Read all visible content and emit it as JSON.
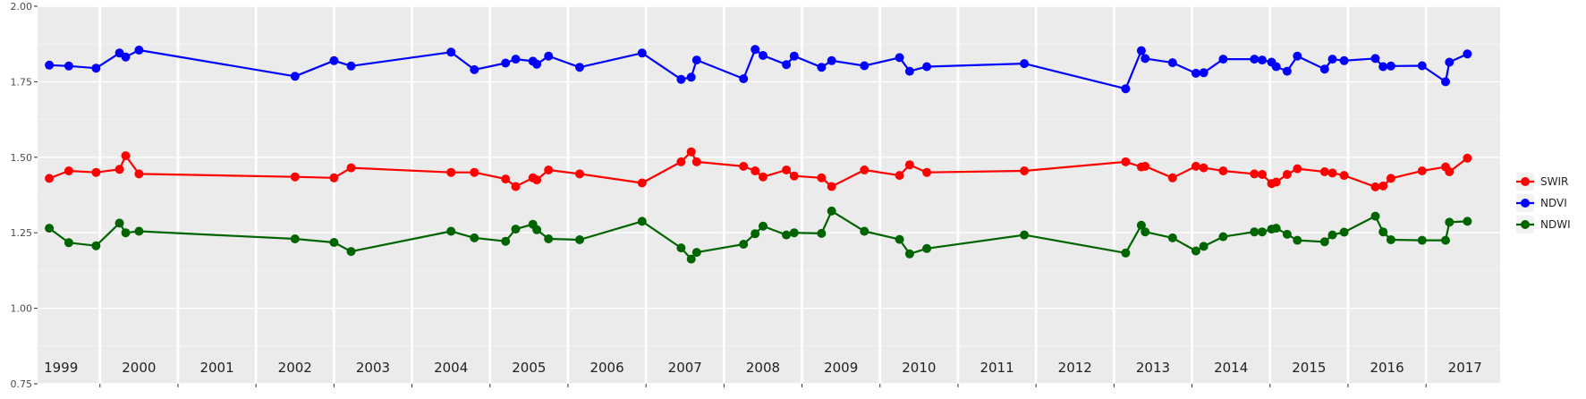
{
  "chart_data": {
    "type": "line",
    "title": "",
    "xlabel": "",
    "ylabel": "",
    "ylim": [
      0.75,
      2.0
    ],
    "xlim": [
      1998.7,
      2017.45
    ],
    "yticks": [
      "0.75",
      "1.00",
      "1.25",
      "1.50",
      "1.75",
      "2.00"
    ],
    "year_labels": [
      "1999",
      "2000",
      "2001",
      "2002",
      "2003",
      "2004",
      "2005",
      "2006",
      "2007",
      "2008",
      "2009",
      "2010",
      "2011",
      "2012",
      "2013",
      "2014",
      "2015",
      "2016",
      "2017"
    ],
    "grid": true,
    "legend_position": "right",
    "series": [
      {
        "name": "SWIR",
        "color": "#ff0000",
        "points": [
          [
            1998.85,
            1.43
          ],
          [
            1999.1,
            1.455
          ],
          [
            1999.45,
            1.45
          ],
          [
            1999.75,
            1.46
          ],
          [
            1999.83,
            1.505
          ],
          [
            2000.0,
            1.445
          ],
          [
            2002.0,
            1.435
          ],
          [
            2002.5,
            1.432
          ],
          [
            2002.72,
            1.465
          ],
          [
            2004.0,
            1.45
          ],
          [
            2004.3,
            1.45
          ],
          [
            2004.7,
            1.428
          ],
          [
            2004.83,
            1.403
          ],
          [
            2005.05,
            1.432
          ],
          [
            2005.1,
            1.425
          ],
          [
            2005.25,
            1.458
          ],
          [
            2005.65,
            1.445
          ],
          [
            2006.45,
            1.415
          ],
          [
            2006.95,
            1.485
          ],
          [
            2007.08,
            1.518
          ],
          [
            2007.15,
            1.485
          ],
          [
            2007.75,
            1.47
          ],
          [
            2007.9,
            1.455
          ],
          [
            2008.0,
            1.435
          ],
          [
            2008.3,
            1.458
          ],
          [
            2008.4,
            1.438
          ],
          [
            2008.75,
            1.432
          ],
          [
            2008.88,
            1.403
          ],
          [
            2009.3,
            1.458
          ],
          [
            2009.75,
            1.44
          ],
          [
            2009.88,
            1.475
          ],
          [
            2010.1,
            1.45
          ],
          [
            2011.35,
            1.455
          ],
          [
            2012.65,
            1.485
          ],
          [
            2012.85,
            1.468
          ],
          [
            2012.9,
            1.47
          ],
          [
            2013.25,
            1.432
          ],
          [
            2013.55,
            1.47
          ],
          [
            2013.65,
            1.465
          ],
          [
            2013.9,
            1.455
          ],
          [
            2014.3,
            1.445
          ],
          [
            2014.4,
            1.443
          ],
          [
            2014.52,
            1.413
          ],
          [
            2014.58,
            1.418
          ],
          [
            2014.72,
            1.443
          ],
          [
            2014.85,
            1.462
          ],
          [
            2015.2,
            1.452
          ],
          [
            2015.3,
            1.448
          ],
          [
            2015.45,
            1.44
          ],
          [
            2015.85,
            1.402
          ],
          [
            2015.95,
            1.405
          ],
          [
            2016.05,
            1.43
          ],
          [
            2016.45,
            1.455
          ],
          [
            2016.75,
            1.468
          ],
          [
            2016.8,
            1.452
          ],
          [
            2017.03,
            1.497
          ]
        ]
      },
      {
        "name": "NDVI",
        "color": "#0000ff",
        "points": [
          [
            1998.85,
            1.805
          ],
          [
            1999.1,
            1.802
          ],
          [
            1999.45,
            1.795
          ],
          [
            1999.75,
            1.845
          ],
          [
            1999.83,
            1.832
          ],
          [
            2000.0,
            1.855
          ],
          [
            2002.0,
            1.768
          ],
          [
            2002.5,
            1.82
          ],
          [
            2002.72,
            1.802
          ],
          [
            2004.0,
            1.848
          ],
          [
            2004.3,
            1.79
          ],
          [
            2004.7,
            1.812
          ],
          [
            2004.83,
            1.825
          ],
          [
            2005.05,
            1.818
          ],
          [
            2005.1,
            1.808
          ],
          [
            2005.25,
            1.835
          ],
          [
            2005.65,
            1.798
          ],
          [
            2006.45,
            1.845
          ],
          [
            2006.95,
            1.758
          ],
          [
            2007.08,
            1.765
          ],
          [
            2007.15,
            1.822
          ],
          [
            2007.75,
            1.76
          ],
          [
            2007.9,
            1.857
          ],
          [
            2008.0,
            1.837
          ],
          [
            2008.3,
            1.807
          ],
          [
            2008.4,
            1.835
          ],
          [
            2008.75,
            1.798
          ],
          [
            2008.88,
            1.82
          ],
          [
            2009.3,
            1.803
          ],
          [
            2009.75,
            1.83
          ],
          [
            2009.88,
            1.785
          ],
          [
            2010.1,
            1.8
          ],
          [
            2011.35,
            1.81
          ],
          [
            2012.65,
            1.727
          ],
          [
            2012.85,
            1.853
          ],
          [
            2012.9,
            1.827
          ],
          [
            2013.25,
            1.813
          ],
          [
            2013.55,
            1.778
          ],
          [
            2013.65,
            1.78
          ],
          [
            2013.9,
            1.825
          ],
          [
            2014.3,
            1.825
          ],
          [
            2014.4,
            1.822
          ],
          [
            2014.52,
            1.815
          ],
          [
            2014.58,
            1.8
          ],
          [
            2014.72,
            1.785
          ],
          [
            2014.85,
            1.835
          ],
          [
            2015.2,
            1.792
          ],
          [
            2015.3,
            1.825
          ],
          [
            2015.45,
            1.82
          ],
          [
            2015.85,
            1.827
          ],
          [
            2015.95,
            1.8
          ],
          [
            2016.05,
            1.802
          ],
          [
            2016.45,
            1.803
          ],
          [
            2016.75,
            1.75
          ],
          [
            2016.8,
            1.815
          ],
          [
            2017.03,
            1.842
          ]
        ]
      },
      {
        "name": "NDWI",
        "color": "#006400",
        "points": [
          [
            1998.85,
            1.265
          ],
          [
            1999.1,
            1.217
          ],
          [
            1999.45,
            1.207
          ],
          [
            1999.75,
            1.282
          ],
          [
            1999.83,
            1.25
          ],
          [
            2000.0,
            1.255
          ],
          [
            2002.0,
            1.23
          ],
          [
            2002.5,
            1.218
          ],
          [
            2002.72,
            1.188
          ],
          [
            2004.0,
            1.255
          ],
          [
            2004.3,
            1.233
          ],
          [
            2004.7,
            1.222
          ],
          [
            2004.83,
            1.262
          ],
          [
            2005.05,
            1.278
          ],
          [
            2005.1,
            1.26
          ],
          [
            2005.25,
            1.23
          ],
          [
            2005.65,
            1.227
          ],
          [
            2006.45,
            1.288
          ],
          [
            2006.95,
            1.2
          ],
          [
            2007.08,
            1.163
          ],
          [
            2007.15,
            1.185
          ],
          [
            2007.75,
            1.212
          ],
          [
            2007.9,
            1.247
          ],
          [
            2008.0,
            1.272
          ],
          [
            2008.3,
            1.243
          ],
          [
            2008.4,
            1.25
          ],
          [
            2008.75,
            1.248
          ],
          [
            2008.88,
            1.322
          ],
          [
            2009.3,
            1.255
          ],
          [
            2009.75,
            1.228
          ],
          [
            2009.88,
            1.18
          ],
          [
            2010.1,
            1.198
          ],
          [
            2011.35,
            1.243
          ],
          [
            2012.65,
            1.183
          ],
          [
            2012.85,
            1.275
          ],
          [
            2012.9,
            1.253
          ],
          [
            2013.25,
            1.233
          ],
          [
            2013.55,
            1.19
          ],
          [
            2013.65,
            1.205
          ],
          [
            2013.9,
            1.237
          ],
          [
            2014.3,
            1.253
          ],
          [
            2014.4,
            1.253
          ],
          [
            2014.52,
            1.262
          ],
          [
            2014.58,
            1.265
          ],
          [
            2014.72,
            1.245
          ],
          [
            2014.85,
            1.225
          ],
          [
            2015.2,
            1.22
          ],
          [
            2015.3,
            1.243
          ],
          [
            2015.45,
            1.252
          ],
          [
            2015.85,
            1.305
          ],
          [
            2015.95,
            1.253
          ],
          [
            2016.05,
            1.227
          ],
          [
            2016.45,
            1.225
          ],
          [
            2016.75,
            1.225
          ],
          [
            2016.8,
            1.285
          ],
          [
            2017.03,
            1.288
          ]
        ]
      }
    ]
  }
}
